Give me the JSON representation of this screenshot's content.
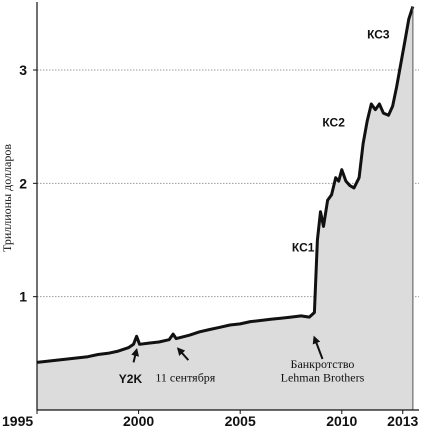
{
  "chart_data": {
    "type": "area",
    "title": "",
    "xlabel": "",
    "ylabel": "Триллионы долларов",
    "xlim": [
      1995,
      2013.8
    ],
    "ylim": [
      0,
      3.6
    ],
    "grid": true,
    "x_ticks": [
      1995,
      2000,
      2005,
      2010,
      2013
    ],
    "y_ticks": [
      1,
      2,
      3
    ],
    "colors": {
      "fill": "#dcdcdc",
      "line": "#111111",
      "grid": "#999999"
    },
    "series": [
      {
        "points": [
          [
            1995.0,
            0.42
          ],
          [
            1995.5,
            0.43
          ],
          [
            1996.0,
            0.44
          ],
          [
            1996.5,
            0.45
          ],
          [
            1997.0,
            0.46
          ],
          [
            1997.5,
            0.47
          ],
          [
            1998.0,
            0.49
          ],
          [
            1998.5,
            0.5
          ],
          [
            1999.0,
            0.52
          ],
          [
            1999.5,
            0.55
          ],
          [
            1999.75,
            0.58
          ],
          [
            1999.9,
            0.65
          ],
          [
            2000.05,
            0.58
          ],
          [
            2000.5,
            0.59
          ],
          [
            2001.0,
            0.6
          ],
          [
            2001.5,
            0.62
          ],
          [
            2001.7,
            0.67
          ],
          [
            2001.85,
            0.63
          ],
          [
            2002.5,
            0.66
          ],
          [
            2003.0,
            0.69
          ],
          [
            2003.5,
            0.71
          ],
          [
            2004.0,
            0.73
          ],
          [
            2004.5,
            0.75
          ],
          [
            2005.0,
            0.76
          ],
          [
            2005.5,
            0.78
          ],
          [
            2006.0,
            0.79
          ],
          [
            2006.5,
            0.8
          ],
          [
            2007.0,
            0.81
          ],
          [
            2007.5,
            0.82
          ],
          [
            2008.0,
            0.83
          ],
          [
            2008.4,
            0.82
          ],
          [
            2008.65,
            0.86
          ],
          [
            2008.8,
            1.5
          ],
          [
            2008.95,
            1.75
          ],
          [
            2009.1,
            1.62
          ],
          [
            2009.3,
            1.85
          ],
          [
            2009.5,
            1.9
          ],
          [
            2009.7,
            2.05
          ],
          [
            2009.85,
            2.02
          ],
          [
            2010.0,
            2.12
          ],
          [
            2010.2,
            2.02
          ],
          [
            2010.4,
            1.98
          ],
          [
            2010.6,
            1.96
          ],
          [
            2010.85,
            2.05
          ],
          [
            2011.05,
            2.35
          ],
          [
            2011.25,
            2.55
          ],
          [
            2011.45,
            2.7
          ],
          [
            2011.65,
            2.65
          ],
          [
            2011.85,
            2.7
          ],
          [
            2012.05,
            2.62
          ],
          [
            2012.3,
            2.6
          ],
          [
            2012.5,
            2.68
          ],
          [
            2012.7,
            2.85
          ],
          [
            2012.9,
            3.05
          ],
          [
            2013.1,
            3.25
          ],
          [
            2013.3,
            3.45
          ],
          [
            2013.5,
            3.56
          ]
        ]
      }
    ],
    "annotations": [
      {
        "text": "КС1",
        "style": "bold",
        "x": 2008.1,
        "y": 1.4,
        "anchor": "middle"
      },
      {
        "text": "КС2",
        "style": "bold",
        "x": 2009.6,
        "y": 2.5,
        "anchor": "middle"
      },
      {
        "text": "КС3",
        "style": "bold",
        "x": 2011.8,
        "y": 3.28,
        "anchor": "middle"
      },
      {
        "text": "Y2K",
        "style": "bold",
        "x": 1999.6,
        "y": 0.24,
        "anchor": "middle"
      },
      {
        "text": "11 сентября",
        "style": "normal",
        "x": 2002.3,
        "y": 0.25,
        "anchor": "middle"
      },
      {
        "text": "Банкротство",
        "style": "normal",
        "x": 2009.05,
        "y": 0.37,
        "anchor": "middle"
      },
      {
        "text": "Lehman Brothers",
        "style": "normal",
        "x": 2009.05,
        "y": 0.25,
        "anchor": "middle"
      }
    ],
    "arrows": [
      {
        "from": [
          1999.75,
          0.42
        ],
        "to": [
          1999.9,
          0.53
        ]
      },
      {
        "from": [
          2002.45,
          0.44
        ],
        "to": [
          2001.95,
          0.54
        ]
      },
      {
        "from": [
          2009.05,
          0.45
        ],
        "to": [
          2008.65,
          0.64
        ]
      }
    ]
  }
}
